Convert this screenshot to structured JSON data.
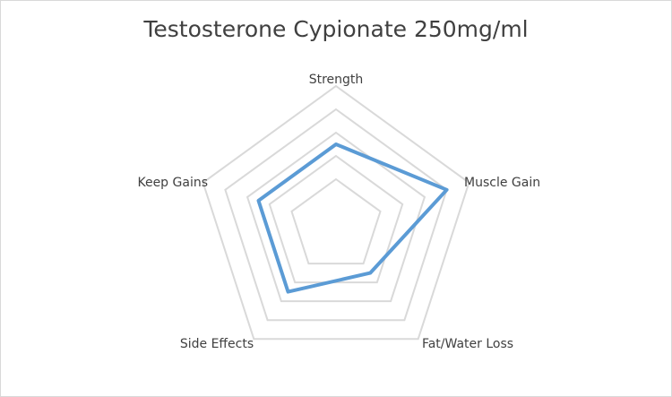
{
  "chart_data": {
    "type": "radar",
    "title": "Testosterone Cypionate 250mg/ml",
    "categories": [
      "Strength",
      "Muscle Gain",
      "Fat/Water Loss",
      "Side Effects",
      "Keep Gains"
    ],
    "series": [
      {
        "values": [
          3.5,
          5,
          2.5,
          3.5,
          3.5
        ],
        "color": "#5b9bd5"
      }
    ],
    "rmax": 6,
    "rings": 5,
    "grid": true,
    "grid_color": "#d9d9d9"
  }
}
